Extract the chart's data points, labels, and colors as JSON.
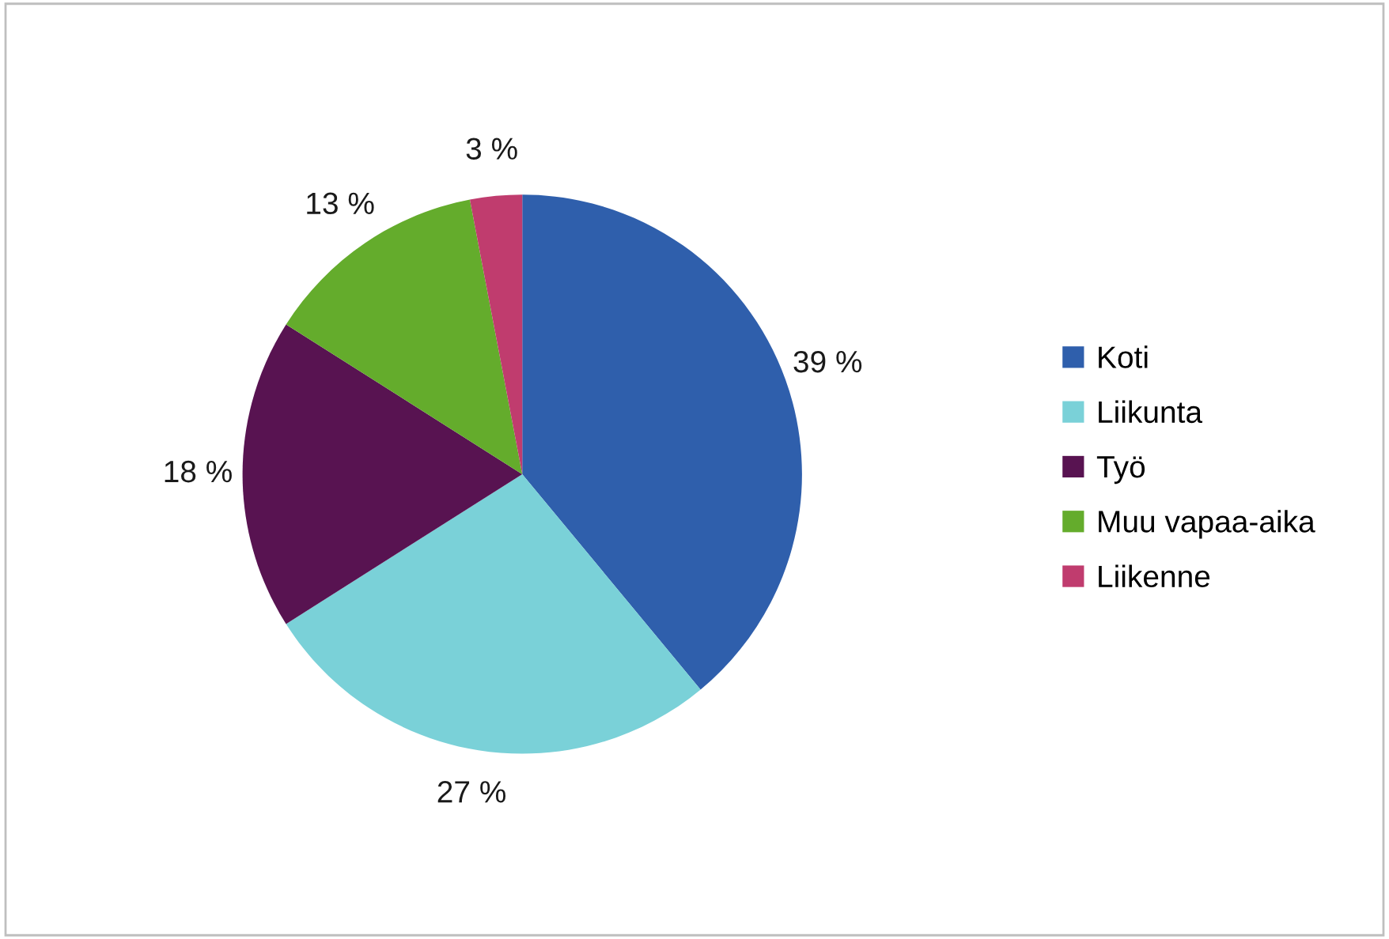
{
  "chart_data": {
    "type": "pie",
    "categories": [
      "Koti",
      "Liikunta",
      "Työ",
      "Muu vapaa-aika",
      "Liikenne"
    ],
    "values": [
      39,
      27,
      18,
      13,
      3
    ],
    "colors": [
      "#2f5fac",
      "#7ad1d8",
      "#581351",
      "#64ac2c",
      "#c03c6e"
    ],
    "value_labels": [
      "39 %",
      "27 %",
      "18 %",
      "13 %",
      "3 %"
    ],
    "legend": "right"
  }
}
